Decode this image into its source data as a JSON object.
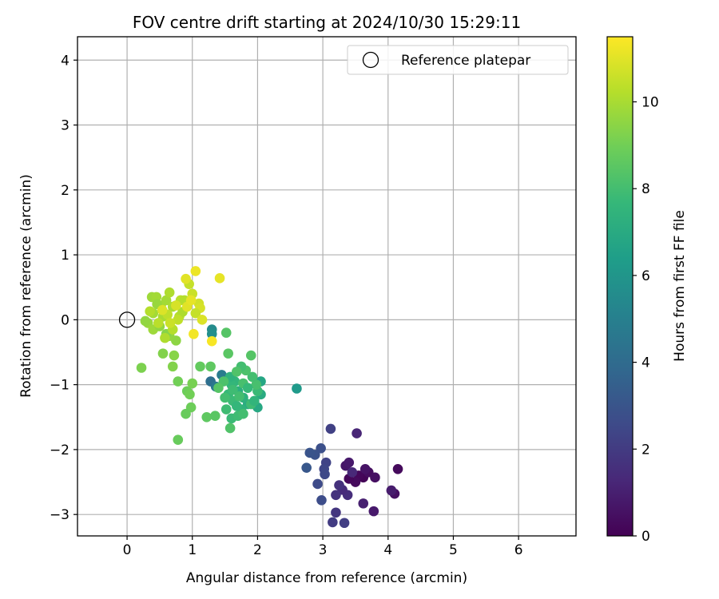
{
  "chart_data": {
    "type": "scatter",
    "title": "FOV centre drift starting at 2024/10/30 15:29:11",
    "xlabel": "Angular distance from reference (arcmin)",
    "ylabel": "Rotation from reference (arcmin)",
    "xlim": [
      -0.76,
      6.88
    ],
    "ylim": [
      -3.33,
      4.36
    ],
    "x_ticks": [
      0,
      1,
      2,
      3,
      4,
      5,
      6
    ],
    "y_ticks": [
      -3,
      -2,
      -1,
      0,
      1,
      2,
      3,
      4
    ],
    "grid": true,
    "legend": {
      "placement": "upper-right",
      "entries": [
        "Reference platepar"
      ]
    },
    "reference_point": {
      "label": "Reference platepar",
      "x": 0,
      "y": 0
    },
    "colorbar": {
      "label": "Hours from first FF file",
      "range": [
        0,
        11.5
      ],
      "ticks": [
        0,
        2,
        4,
        6,
        8,
        10
      ],
      "colormap": "viridis"
    },
    "points": [
      {
        "x": 3.62,
        "y": -2.43,
        "c": 0.1
      },
      {
        "x": 3.55,
        "y": -2.4,
        "c": 0.2
      },
      {
        "x": 3.5,
        "y": -2.5,
        "c": 0.3
      },
      {
        "x": 3.4,
        "y": -2.45,
        "c": 0.2
      },
      {
        "x": 3.7,
        "y": -2.35,
        "c": 0.4
      },
      {
        "x": 3.8,
        "y": -2.43,
        "c": 0.5
      },
      {
        "x": 3.65,
        "y": -2.3,
        "c": 0.6
      },
      {
        "x": 3.35,
        "y": -2.25,
        "c": 0.7
      },
      {
        "x": 3.4,
        "y": -2.2,
        "c": 0.8
      },
      {
        "x": 4.15,
        "y": -2.3,
        "c": 0.3
      },
      {
        "x": 4.1,
        "y": -2.68,
        "c": 0.5
      },
      {
        "x": 4.05,
        "y": -2.63,
        "c": 0.9
      },
      {
        "x": 3.78,
        "y": -2.95,
        "c": 0.8
      },
      {
        "x": 3.62,
        "y": -2.83,
        "c": 1.0
      },
      {
        "x": 3.52,
        "y": -1.75,
        "c": 1.2
      },
      {
        "x": 3.45,
        "y": -2.35,
        "c": 1.3
      },
      {
        "x": 3.38,
        "y": -2.7,
        "c": 1.5
      },
      {
        "x": 3.3,
        "y": -2.62,
        "c": 1.4
      },
      {
        "x": 3.25,
        "y": -2.55,
        "c": 1.6
      },
      {
        "x": 3.2,
        "y": -2.7,
        "c": 1.7
      },
      {
        "x": 3.2,
        "y": -2.97,
        "c": 1.8
      },
      {
        "x": 3.15,
        "y": -3.12,
        "c": 2.0
      },
      {
        "x": 3.33,
        "y": -3.13,
        "c": 2.1
      },
      {
        "x": 3.12,
        "y": -1.68,
        "c": 2.2
      },
      {
        "x": 3.05,
        "y": -2.2,
        "c": 2.3
      },
      {
        "x": 3.02,
        "y": -2.3,
        "c": 2.4
      },
      {
        "x": 3.03,
        "y": -2.38,
        "c": 2.5
      },
      {
        "x": 2.92,
        "y": -2.53,
        "c": 2.6
      },
      {
        "x": 2.98,
        "y": -2.78,
        "c": 2.7
      },
      {
        "x": 2.97,
        "y": -1.98,
        "c": 2.8
      },
      {
        "x": 2.88,
        "y": -2.08,
        "c": 2.9
      },
      {
        "x": 2.8,
        "y": -2.05,
        "c": 3.0
      },
      {
        "x": 2.75,
        "y": -2.28,
        "c": 3.1
      },
      {
        "x": 1.28,
        "y": -0.95,
        "c": 4.2
      },
      {
        "x": 1.36,
        "y": -1.03,
        "c": 4.6
      },
      {
        "x": 1.45,
        "y": -0.85,
        "c": 4.8
      },
      {
        "x": 1.3,
        "y": -0.15,
        "c": 5.5
      },
      {
        "x": 1.3,
        "y": -0.22,
        "c": 5.7
      },
      {
        "x": 2.6,
        "y": -1.06,
        "c": 6.2
      },
      {
        "x": 2.05,
        "y": -0.95,
        "c": 6.8
      },
      {
        "x": 2.05,
        "y": -1.15,
        "c": 7.0
      },
      {
        "x": 2.0,
        "y": -1.35,
        "c": 6.9
      },
      {
        "x": 1.85,
        "y": -1.3,
        "c": 7.1
      },
      {
        "x": 1.78,
        "y": -1.2,
        "c": 7.3
      },
      {
        "x": 1.75,
        "y": -1.38,
        "c": 7.4
      },
      {
        "x": 1.7,
        "y": -1.1,
        "c": 7.2
      },
      {
        "x": 1.65,
        "y": -0.95,
        "c": 7.5
      },
      {
        "x": 1.6,
        "y": -1.0,
        "c": 7.6
      },
      {
        "x": 1.58,
        "y": -0.88,
        "c": 7.4
      },
      {
        "x": 1.55,
        "y": -1.15,
        "c": 7.7
      },
      {
        "x": 1.62,
        "y": -1.25,
        "c": 7.8
      },
      {
        "x": 1.68,
        "y": -1.33,
        "c": 7.6
      },
      {
        "x": 1.52,
        "y": -1.38,
        "c": 7.9
      },
      {
        "x": 1.6,
        "y": -1.52,
        "c": 7.8
      },
      {
        "x": 1.7,
        "y": -1.48,
        "c": 7.9
      },
      {
        "x": 1.78,
        "y": -1.45,
        "c": 8.0
      },
      {
        "x": 1.9,
        "y": -1.3,
        "c": 7.9
      },
      {
        "x": 1.95,
        "y": -1.25,
        "c": 7.5
      },
      {
        "x": 2.0,
        "y": -1.1,
        "c": 7.8
      },
      {
        "x": 1.98,
        "y": -1.0,
        "c": 8.1
      },
      {
        "x": 1.92,
        "y": -0.88,
        "c": 8.0
      },
      {
        "x": 1.82,
        "y": -0.78,
        "c": 8.2
      },
      {
        "x": 1.75,
        "y": -0.72,
        "c": 8.0
      },
      {
        "x": 1.68,
        "y": -0.8,
        "c": 8.3
      },
      {
        "x": 1.48,
        "y": -0.95,
        "c": 8.2
      },
      {
        "x": 1.4,
        "y": -1.05,
        "c": 8.4
      },
      {
        "x": 1.5,
        "y": -1.2,
        "c": 8.0
      },
      {
        "x": 1.58,
        "y": -1.67,
        "c": 8.3
      },
      {
        "x": 1.9,
        "y": -0.55,
        "c": 8.4
      },
      {
        "x": 1.55,
        "y": -0.52,
        "c": 8.5
      },
      {
        "x": 1.52,
        "y": -0.2,
        "c": 8.4
      },
      {
        "x": 1.78,
        "y": -0.98,
        "c": 8.1
      },
      {
        "x": 1.85,
        "y": -1.05,
        "c": 7.7
      },
      {
        "x": 1.72,
        "y": -1.18,
        "c": 8.0
      },
      {
        "x": 1.62,
        "y": -1.08,
        "c": 7.9
      },
      {
        "x": 1.28,
        "y": -0.72,
        "c": 8.6
      },
      {
        "x": 1.12,
        "y": -0.72,
        "c": 8.7
      },
      {
        "x": 1.22,
        "y": -1.5,
        "c": 8.6
      },
      {
        "x": 1.35,
        "y": -1.48,
        "c": 8.5
      },
      {
        "x": 0.98,
        "y": -1.35,
        "c": 8.9
      },
      {
        "x": 0.9,
        "y": -1.45,
        "c": 8.8
      },
      {
        "x": 0.92,
        "y": -1.1,
        "c": 8.9
      },
      {
        "x": 0.96,
        "y": -1.15,
        "c": 9.0
      },
      {
        "x": 1.0,
        "y": -0.98,
        "c": 9.1
      },
      {
        "x": 0.78,
        "y": -0.95,
        "c": 9.0
      },
      {
        "x": 0.78,
        "y": -1.85,
        "c": 8.8
      },
      {
        "x": 0.22,
        "y": -0.74,
        "c": 9.2
      },
      {
        "x": 0.7,
        "y": -0.72,
        "c": 9.3
      },
      {
        "x": 0.72,
        "y": -0.55,
        "c": 9.4
      },
      {
        "x": 0.55,
        "y": -0.52,
        "c": 9.3
      },
      {
        "x": 0.75,
        "y": -0.32,
        "c": 9.5
      },
      {
        "x": 0.65,
        "y": -0.25,
        "c": 9.6
      },
      {
        "x": 0.6,
        "y": -0.22,
        "c": 9.4
      },
      {
        "x": 0.32,
        "y": -0.05,
        "c": 9.7
      },
      {
        "x": 0.4,
        "y": -0.15,
        "c": 9.8
      },
      {
        "x": 0.5,
        "y": -0.1,
        "c": 9.6
      },
      {
        "x": 0.4,
        "y": 0.1,
        "c": 9.9
      },
      {
        "x": 0.38,
        "y": 0.35,
        "c": 9.8
      },
      {
        "x": 0.45,
        "y": 0.35,
        "c": 9.9
      },
      {
        "x": 0.52,
        "y": 0.22,
        "c": 10.0
      },
      {
        "x": 0.6,
        "y": 0.3,
        "c": 9.9
      },
      {
        "x": 0.65,
        "y": 0.42,
        "c": 10.1
      },
      {
        "x": 0.7,
        "y": 0.2,
        "c": 10.0
      },
      {
        "x": 0.8,
        "y": 0.05,
        "c": 10.2
      },
      {
        "x": 0.85,
        "y": 0.12,
        "c": 10.1
      },
      {
        "x": 0.55,
        "y": 0.05,
        "c": 10.0
      },
      {
        "x": 0.48,
        "y": -0.05,
        "c": 10.3
      },
      {
        "x": 0.35,
        "y": 0.13,
        "c": 10.2
      },
      {
        "x": 0.58,
        "y": -0.28,
        "c": 10.1
      },
      {
        "x": 0.7,
        "y": -0.15,
        "c": 10.2
      },
      {
        "x": 0.78,
        "y": 0.0,
        "c": 10.4
      },
      {
        "x": 0.82,
        "y": 0.3,
        "c": 10.3
      },
      {
        "x": 0.88,
        "y": 0.3,
        "c": 10.2
      },
      {
        "x": 0.95,
        "y": 0.55,
        "c": 10.5
      },
      {
        "x": 1.0,
        "y": 0.4,
        "c": 10.6
      },
      {
        "x": 1.1,
        "y": 0.25,
        "c": 10.7
      },
      {
        "x": 1.12,
        "y": 0.18,
        "c": 10.8
      },
      {
        "x": 1.05,
        "y": 0.1,
        "c": 10.5
      },
      {
        "x": 1.15,
        "y": 0.0,
        "c": 10.9
      },
      {
        "x": 0.9,
        "y": 0.63,
        "c": 11.0
      },
      {
        "x": 1.05,
        "y": 0.75,
        "c": 11.2
      },
      {
        "x": 1.42,
        "y": 0.64,
        "c": 11.1
      },
      {
        "x": 1.02,
        "y": -0.22,
        "c": 11.3
      },
      {
        "x": 1.3,
        "y": -0.33,
        "c": 11.4
      },
      {
        "x": 0.92,
        "y": 0.2,
        "c": 11.0
      },
      {
        "x": 0.98,
        "y": 0.3,
        "c": 11.1
      },
      {
        "x": 0.28,
        "y": -0.02,
        "c": 9.6
      },
      {
        "x": 0.46,
        "y": 0.24,
        "c": 9.7
      },
      {
        "x": 0.62,
        "y": 0.08,
        "c": 10.4
      },
      {
        "x": 0.75,
        "y": 0.22,
        "c": 10.8
      },
      {
        "x": 0.66,
        "y": -0.05,
        "c": 10.6
      },
      {
        "x": 0.54,
        "y": 0.15,
        "c": 10.9
      }
    ]
  }
}
